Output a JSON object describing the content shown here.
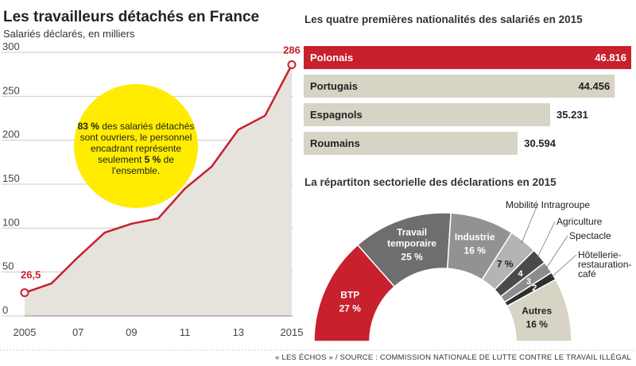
{
  "chart_data": [
    {
      "type": "area",
      "title": "Les travailleurs détachés en France",
      "subtitle": "Salariés déclarés, en milliers",
      "x": [
        2005,
        2006,
        2007,
        2008,
        2009,
        2010,
        2011,
        2012,
        2013,
        2014,
        2015
      ],
      "x_tick_labels": [
        "2005",
        "07",
        "09",
        "11",
        "13",
        "2015"
      ],
      "x_tick_values": [
        2005,
        2007,
        2009,
        2011,
        2013,
        2015
      ],
      "values": [
        26.5,
        37,
        67,
        95,
        105,
        111,
        145,
        170,
        212,
        228,
        286
      ],
      "ylim": [
        0,
        300
      ],
      "y_ticks": [
        0,
        50,
        100,
        150,
        200,
        250,
        300
      ],
      "grid": true,
      "labels": {
        "first": "26,5",
        "last": "286"
      },
      "colors": {
        "line": "#c8202d",
        "fill": "#e5e3db",
        "grid": "#c9c9c9"
      },
      "annotation": {
        "color": "#ffec00",
        "parts": [
          {
            "text": "83 %",
            "bold": true
          },
          {
            "text": " des salariés détachés sont ouvriers, le personnel encadrant représente seulement ",
            "bold": false
          },
          {
            "text": "5 %",
            "bold": true
          },
          {
            "text": " de l'ensemble.",
            "bold": false
          }
        ]
      }
    },
    {
      "type": "bar",
      "orientation": "horizontal",
      "title": "Les quatre premières nationalités des salariés en 2015",
      "categories": [
        "Polonais",
        "Portugais",
        "Espagnols",
        "Roumains"
      ],
      "values": [
        46816,
        44456,
        35231,
        30594
      ],
      "value_labels": [
        "46.816",
        "44.456",
        "35.231",
        "30.594"
      ],
      "colors": {
        "highlight": "#c8202d",
        "bar": "#d8d4c5"
      }
    },
    {
      "type": "pie",
      "variant": "half-donut",
      "title": "La répartiton sectorielle des déclarations en 2015",
      "slices": [
        {
          "name": "BTP",
          "value": 27,
          "label": "27 %",
          "color": "#c8202d"
        },
        {
          "name": "Travail temporaire",
          "value": 25,
          "label": "25 %",
          "color": "#6e6e6e"
        },
        {
          "name": "Industrie",
          "value": 16,
          "label": "16 %",
          "color": "#929292"
        },
        {
          "name": "Mobilité Intragroupe",
          "value": 7,
          "label": "7 %",
          "color": "#b4b4b4"
        },
        {
          "name": "Agriculture",
          "value": 4,
          "label": "4",
          "color": "#4a4a4a"
        },
        {
          "name": "Spectacle",
          "value": 3,
          "label": "3",
          "color": "#8c8c8c"
        },
        {
          "name": "Hôtellerie-restauration-café",
          "value": 2,
          "label": "2",
          "color": "#2f2f2f"
        },
        {
          "name": "Autres",
          "value": 16,
          "label": "16 %",
          "color": "#d8d4c5"
        }
      ],
      "outside_labels": [
        "Mobilité Intragroupe",
        "Agriculture",
        "Spectacle",
        "Hôtellerie-",
        "restauration-",
        "café"
      ]
    }
  ],
  "footer": "« LES ÉCHOS » / SOURCE : COMMISSION NATIONALE DE LUTTE CONTRE LE TRAVAIL ILLÉGAL"
}
